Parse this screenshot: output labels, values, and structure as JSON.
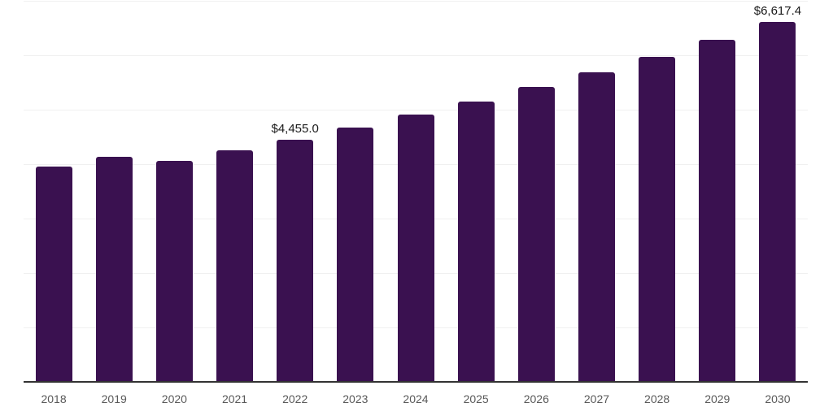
{
  "chart_data": {
    "type": "bar",
    "title": "",
    "xlabel": "",
    "ylabel": "",
    "categories": [
      "2018",
      "2019",
      "2020",
      "2021",
      "2022",
      "2023",
      "2024",
      "2025",
      "2026",
      "2027",
      "2028",
      "2029",
      "2030"
    ],
    "values": [
      3950,
      4140,
      4060,
      4255,
      4455.0,
      4670,
      4910,
      5145,
      5420,
      5680,
      5965,
      6285,
      6617.4
    ],
    "point_labels": [
      "",
      "",
      "",
      "",
      "$4,455.0",
      "",
      "",
      "",
      "",
      "",
      "",
      "",
      "$6,617.4"
    ],
    "labeled_points": [
      {
        "category": "2022",
        "label": "$4,455.0",
        "value": 4455.0
      },
      {
        "category": "2030",
        "label": "$6,617.4",
        "value": 6617.4
      }
    ],
    "ylim": [
      0,
      7000
    ],
    "y_gridline_step": 1000,
    "y_axis_tick_labels_visible": false,
    "grid": "horizontal",
    "legend": "none",
    "colors": {
      "bar": "#3A1150",
      "gridline": "#f0f0f0",
      "axis_line": "#333333",
      "tick_label": "#595959",
      "data_label": "#1a1a1a",
      "background": "#ffffff"
    }
  }
}
